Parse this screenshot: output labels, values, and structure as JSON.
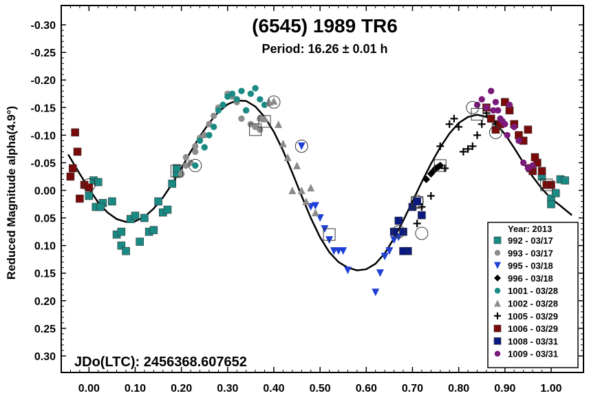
{
  "chart_data": {
    "type": "scatter",
    "title": "(6545) 1989 TR6",
    "subtitle": "Period: 16.26 ± 0.01 h",
    "ylabel": "Reduced Magnitude alpha(4.9°)",
    "xlabel": "",
    "annotation": "JDo(LTC): 2456368.607652",
    "xlim": [
      -0.06,
      1.07
    ],
    "ylim": [
      -0.335,
      0.33
    ],
    "y_inverted": true,
    "x_ticks": [
      "0.00",
      "0.10",
      "0.20",
      "0.30",
      "0.40",
      "0.50",
      "0.60",
      "0.70",
      "0.80",
      "0.90",
      "1.00"
    ],
    "y_ticks": [
      "-0.30",
      "-0.25",
      "-0.20",
      "-0.15",
      "-0.10",
      "-0.05",
      "0.00",
      "0.05",
      "0.10",
      "0.15",
      "0.20",
      "0.25",
      "0.30"
    ],
    "legend_title": "Year: 2013",
    "legend_position": "bottom-right",
    "fit_curve": [
      [
        -0.045,
        -0.065
      ],
      [
        -0.02,
        -0.03
      ],
      [
        0.0,
        -0.003
      ],
      [
        0.02,
        0.022
      ],
      [
        0.04,
        0.04
      ],
      [
        0.06,
        0.052
      ],
      [
        0.08,
        0.057
      ],
      [
        0.1,
        0.056
      ],
      [
        0.12,
        0.048
      ],
      [
        0.14,
        0.033
      ],
      [
        0.16,
        0.013
      ],
      [
        0.18,
        -0.012
      ],
      [
        0.2,
        -0.04
      ],
      [
        0.22,
        -0.07
      ],
      [
        0.24,
        -0.098
      ],
      [
        0.26,
        -0.122
      ],
      [
        0.28,
        -0.142
      ],
      [
        0.3,
        -0.156
      ],
      [
        0.32,
        -0.163
      ],
      [
        0.34,
        -0.162
      ],
      [
        0.36,
        -0.152
      ],
      [
        0.38,
        -0.133
      ],
      [
        0.4,
        -0.106
      ],
      [
        0.42,
        -0.072
      ],
      [
        0.44,
        -0.032
      ],
      [
        0.46,
        0.01
      ],
      [
        0.48,
        0.05
      ],
      [
        0.5,
        0.085
      ],
      [
        0.52,
        0.112
      ],
      [
        0.54,
        0.13
      ],
      [
        0.56,
        0.14
      ],
      [
        0.58,
        0.145
      ],
      [
        0.6,
        0.143
      ],
      [
        0.62,
        0.133
      ],
      [
        0.64,
        0.114
      ],
      [
        0.66,
        0.087
      ],
      [
        0.68,
        0.055
      ],
      [
        0.7,
        0.02
      ],
      [
        0.72,
        -0.015
      ],
      [
        0.74,
        -0.048
      ],
      [
        0.76,
        -0.078
      ],
      [
        0.78,
        -0.103
      ],
      [
        0.8,
        -0.122
      ],
      [
        0.82,
        -0.133
      ],
      [
        0.84,
        -0.137
      ],
      [
        0.86,
        -0.133
      ],
      [
        0.88,
        -0.121
      ],
      [
        0.9,
        -0.102
      ],
      [
        0.92,
        -0.077
      ],
      [
        0.94,
        -0.05
      ],
      [
        0.96,
        -0.025
      ],
      [
        0.98,
        -0.003
      ],
      [
        1.0,
        0.015
      ],
      [
        1.02,
        0.028
      ],
      [
        1.045,
        0.045
      ]
    ],
    "series": [
      {
        "name": "992 - 03/17",
        "marker": "square",
        "color": "#1a8a84",
        "x": [
          0.0,
          0.01,
          0.02,
          0.03,
          0.05,
          0.06,
          0.07,
          0.07,
          0.08,
          0.09,
          0.1,
          0.11,
          0.12,
          0.13,
          0.14,
          0.15,
          0.16,
          0.17,
          0.18,
          0.19,
          0.19,
          0.015,
          0.025,
          0.98,
          1.0,
          1.02,
          1.03,
          1.01,
          1.0
        ],
        "y": [
          0.01,
          -0.018,
          -0.015,
          0.023,
          0.02,
          0.08,
          0.075,
          0.1,
          0.11,
          0.052,
          0.046,
          0.093,
          0.05,
          0.075,
          0.072,
          0.02,
          0.04,
          0.035,
          -0.012,
          -0.03,
          -0.04,
          0.03,
          0.03,
          -0.025,
          0.015,
          -0.02,
          -0.018,
          0.005,
          0.025
        ]
      },
      {
        "name": "993 - 03/17",
        "marker": "circle",
        "color": "#8c8c8c",
        "x": [
          0.2,
          0.21,
          0.22,
          0.23,
          0.24,
          0.26,
          0.27,
          0.28,
          0.3,
          0.31,
          0.32,
          0.33,
          0.34,
          0.35,
          0.36,
          0.37,
          0.37,
          0.21,
          0.23,
          0.25
        ],
        "y": [
          -0.03,
          -0.06,
          -0.05,
          -0.08,
          -0.095,
          -0.12,
          -0.135,
          -0.15,
          -0.175,
          -0.17,
          -0.16,
          -0.13,
          -0.145,
          -0.12,
          -0.115,
          -0.11,
          -0.13,
          -0.045,
          -0.07,
          -0.1
        ]
      },
      {
        "name": "995 - 03/18",
        "marker": "triangle-down",
        "color": "#1f3fd6",
        "x": [
          0.46,
          0.48,
          0.49,
          0.5,
          0.51,
          0.52,
          0.53,
          0.54,
          0.56,
          0.62,
          0.63,
          0.64,
          0.65,
          0.66,
          0.67,
          0.55
        ],
        "y": [
          -0.08,
          0.03,
          0.028,
          0.05,
          0.07,
          0.09,
          0.11,
          0.11,
          0.145,
          0.185,
          0.15,
          0.12,
          0.11,
          0.09,
          0.085,
          0.11
        ]
      },
      {
        "name": "996 - 03/18",
        "marker": "diamond",
        "color": "#000000",
        "x": [
          0.73,
          0.74,
          0.745,
          0.75,
          0.755,
          0.76
        ],
        "y": [
          -0.02,
          -0.03,
          -0.035,
          -0.04,
          -0.042,
          -0.045
        ]
      },
      {
        "name": "1001 - 03/28",
        "marker": "circle",
        "color": "#1a8a84",
        "x": [
          0.25,
          0.26,
          0.27,
          0.28,
          0.29,
          0.3,
          0.31,
          0.32,
          0.33,
          0.34,
          0.35,
          0.36,
          0.37,
          0.38,
          0.24,
          0.23
        ],
        "y": [
          -0.078,
          -0.1,
          -0.115,
          -0.145,
          -0.155,
          -0.17,
          -0.175,
          -0.165,
          -0.18,
          -0.145,
          -0.175,
          -0.185,
          -0.165,
          -0.155,
          -0.09,
          -0.045
        ]
      },
      {
        "name": "1002 - 03/28",
        "marker": "triangle-up",
        "color": "#8c8c8c",
        "x": [
          0.38,
          0.39,
          0.4,
          0.41,
          0.42,
          0.43,
          0.44,
          0.45,
          0.46,
          0.47,
          0.48,
          0.49
        ],
        "y": [
          -0.13,
          -0.16,
          -0.162,
          -0.12,
          -0.085,
          -0.06,
          0.0,
          -0.045,
          0.0,
          0.02,
          -0.005,
          0.04
        ]
      },
      {
        "name": "1005 - 03/29",
        "marker": "plus",
        "color": "#000000",
        "x": [
          0.71,
          0.72,
          0.74,
          0.76,
          0.77,
          0.79,
          0.8,
          0.81,
          0.82,
          0.83,
          0.84,
          0.85,
          0.86,
          0.87,
          0.88,
          0.78
        ],
        "y": [
          0.06,
          0.03,
          0.01,
          -0.08,
          -0.04,
          -0.13,
          -0.115,
          -0.07,
          -0.075,
          -0.08,
          -0.1,
          -0.12,
          -0.14,
          -0.13,
          -0.12,
          -0.12
        ]
      },
      {
        "name": "1006 - 03/29",
        "marker": "square",
        "color": "#7a0a0a",
        "x": [
          -0.04,
          -0.035,
          -0.03,
          -0.025,
          -0.02,
          -0.01,
          0.0,
          0.86,
          0.87,
          0.88,
          0.89,
          0.9,
          0.91,
          0.92,
          0.93,
          0.94,
          0.95,
          0.96,
          0.97,
          0.98,
          0.99,
          1.0,
          0.955,
          0.965
        ],
        "y": [
          -0.025,
          -0.04,
          -0.105,
          -0.07,
          0.015,
          -0.01,
          -0.005,
          -0.15,
          -0.13,
          -0.11,
          -0.12,
          -0.16,
          -0.145,
          -0.12,
          -0.1,
          -0.09,
          -0.11,
          -0.035,
          -0.05,
          -0.035,
          -0.01,
          -0.01,
          -0.04,
          -0.06
        ]
      },
      {
        "name": "1008 - 03/31",
        "marker": "square",
        "color": "#0a1a80",
        "x": [
          0.66,
          0.67,
          0.68,
          0.69,
          0.7,
          0.71,
          0.72,
          0.68
        ],
        "y": [
          0.075,
          0.055,
          0.075,
          0.11,
          0.03,
          0.02,
          0.045,
          0.11
        ]
      },
      {
        "name": "1009 - 03/31",
        "marker": "circle",
        "color": "#7a1a7a",
        "x": [
          0.84,
          0.85,
          0.86,
          0.87,
          0.875,
          0.88,
          0.89,
          0.9,
          0.91,
          0.92,
          0.93,
          0.94,
          0.95,
          0.96,
          0.885,
          0.895,
          0.905
        ],
        "y": [
          -0.155,
          -0.165,
          -0.15,
          -0.18,
          -0.145,
          -0.16,
          -0.13,
          -0.12,
          -0.155,
          -0.115,
          -0.09,
          -0.05,
          -0.04,
          -0.045,
          -0.145,
          -0.125,
          -0.1
        ]
      }
    ],
    "circled_points": [
      {
        "x": 0.0,
        "y": -0.01,
        "shape": "circle"
      },
      {
        "x": 0.19,
        "y": -0.035,
        "shape": "square"
      },
      {
        "x": 0.23,
        "y": -0.045,
        "shape": "circle"
      },
      {
        "x": 0.36,
        "y": -0.11,
        "shape": "square"
      },
      {
        "x": 0.38,
        "y": -0.125,
        "shape": "square"
      },
      {
        "x": 0.4,
        "y": -0.16,
        "shape": "circle"
      },
      {
        "x": 0.46,
        "y": -0.08,
        "shape": "circle"
      },
      {
        "x": 0.52,
        "y": 0.08,
        "shape": "square"
      },
      {
        "x": 0.67,
        "y": 0.075,
        "shape": "circle"
      },
      {
        "x": 0.71,
        "y": 0.022,
        "shape": "square"
      },
      {
        "x": 0.71,
        "y": 0.02,
        "shape": "circle"
      },
      {
        "x": 0.72,
        "y": 0.078,
        "shape": "circle"
      },
      {
        "x": 0.76,
        "y": -0.045,
        "shape": "square"
      },
      {
        "x": 0.83,
        "y": -0.15,
        "shape": "circle"
      },
      {
        "x": 0.84,
        "y": -0.138,
        "shape": "square"
      },
      {
        "x": 0.88,
        "y": -0.105,
        "shape": "circle"
      },
      {
        "x": 0.99,
        "y": -0.01,
        "shape": "square"
      }
    ]
  }
}
